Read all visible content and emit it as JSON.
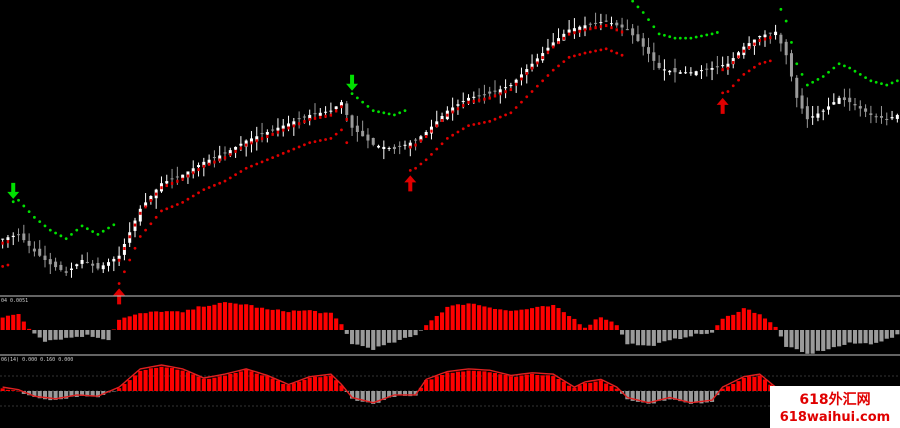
{
  "window": {
    "background": "#000000",
    "separator_color": "#c8c8c8"
  },
  "chart_data": [
    {
      "type": "candlestick",
      "description_colors": {
        "bull": "#ffffff",
        "bear": "#9a9a9a",
        "bull_mark": "#e00000",
        "sell_signal": "#00e000",
        "buy_signal": "#e00000"
      },
      "bars": 170,
      "anchors_close": [
        [
          0,
          0.2
        ],
        [
          3,
          0.22
        ],
        [
          6,
          0.14
        ],
        [
          9,
          0.08
        ],
        [
          12,
          0.04
        ],
        [
          15,
          0.1
        ],
        [
          18,
          0.06
        ],
        [
          22,
          0.12
        ],
        [
          26,
          0.34
        ],
        [
          30,
          0.46
        ],
        [
          34,
          0.5
        ],
        [
          38,
          0.56
        ],
        [
          42,
          0.6
        ],
        [
          46,
          0.66
        ],
        [
          50,
          0.7
        ],
        [
          54,
          0.74
        ],
        [
          58,
          0.78
        ],
        [
          62,
          0.8
        ],
        [
          64,
          0.84
        ],
        [
          66,
          0.72
        ],
        [
          70,
          0.64
        ],
        [
          74,
          0.62
        ],
        [
          78,
          0.66
        ],
        [
          80,
          0.7
        ],
        [
          84,
          0.8
        ],
        [
          88,
          0.86
        ],
        [
          92,
          0.88
        ],
        [
          96,
          0.92
        ],
        [
          100,
          1.02
        ],
        [
          104,
          1.12
        ],
        [
          107,
          1.18
        ],
        [
          110,
          1.2
        ],
        [
          114,
          1.22
        ],
        [
          118,
          1.18
        ],
        [
          121,
          1.1
        ],
        [
          124,
          1.0
        ],
        [
          127,
          0.98
        ],
        [
          130,
          0.98
        ],
        [
          134,
          1.0
        ],
        [
          137,
          1.02
        ],
        [
          140,
          1.1
        ],
        [
          143,
          1.15
        ],
        [
          146,
          1.17
        ],
        [
          148,
          1.06
        ],
        [
          150,
          0.86
        ],
        [
          152,
          0.76
        ],
        [
          155,
          0.8
        ],
        [
          158,
          0.86
        ],
        [
          160,
          0.84
        ],
        [
          164,
          0.78
        ],
        [
          167,
          0.76
        ],
        [
          169,
          0.78
        ]
      ],
      "signals": [
        {
          "type": "sell",
          "bar": 2
        },
        {
          "type": "buy",
          "bar": 22
        },
        {
          "type": "sell",
          "bar": 66
        },
        {
          "type": "buy",
          "bar": 77
        },
        {
          "type": "sell",
          "bar": 118
        },
        {
          "type": "buy",
          "bar": 136
        },
        {
          "type": "sell",
          "bar": 146
        }
      ],
      "value_range": [
        -0.05,
        1.3
      ]
    },
    {
      "type": "histogram",
      "label": "04 0.0051",
      "pos_color": "#ff0000",
      "neg_color": "#9a9a9a",
      "anchors": [
        [
          0,
          0.45
        ],
        [
          3,
          0.6
        ],
        [
          5,
          0.05
        ],
        [
          8,
          -0.4
        ],
        [
          12,
          -0.3
        ],
        [
          16,
          -0.2
        ],
        [
          20,
          -0.35
        ],
        [
          22,
          0.4
        ],
        [
          26,
          0.6
        ],
        [
          30,
          0.7
        ],
        [
          34,
          0.65
        ],
        [
          38,
          0.9
        ],
        [
          42,
          1.0
        ],
        [
          46,
          0.95
        ],
        [
          50,
          0.75
        ],
        [
          54,
          0.7
        ],
        [
          58,
          0.72
        ],
        [
          62,
          0.6
        ],
        [
          64,
          0.2
        ],
        [
          66,
          -0.5
        ],
        [
          70,
          -0.7
        ],
        [
          74,
          -0.45
        ],
        [
          78,
          -0.2
        ],
        [
          80,
          0.2
        ],
        [
          84,
          0.85
        ],
        [
          88,
          1.0
        ],
        [
          92,
          0.85
        ],
        [
          96,
          0.7
        ],
        [
          100,
          0.8
        ],
        [
          104,
          0.9
        ],
        [
          108,
          0.4
        ],
        [
          110,
          0.1
        ],
        [
          113,
          0.5
        ],
        [
          116,
          0.2
        ],
        [
          118,
          -0.5
        ],
        [
          122,
          -0.6
        ],
        [
          126,
          -0.4
        ],
        [
          130,
          -0.2
        ],
        [
          134,
          -0.1
        ],
        [
          136,
          0.4
        ],
        [
          140,
          0.8
        ],
        [
          143,
          0.6
        ],
        [
          146,
          0.1
        ],
        [
          148,
          -0.6
        ],
        [
          152,
          -0.9
        ],
        [
          156,
          -0.7
        ],
        [
          160,
          -0.5
        ],
        [
          164,
          -0.5
        ],
        [
          167,
          -0.35
        ],
        [
          169,
          -0.2
        ]
      ]
    },
    {
      "type": "oscillator",
      "label": "06(14) 0.000 0.160 0.000",
      "pos_color": "#ff0000",
      "neg_color": "#9a9a9a",
      "line_color": "#e02020",
      "anchors": [
        [
          0,
          0.1
        ],
        [
          3,
          0.0
        ],
        [
          6,
          -0.25
        ],
        [
          10,
          -0.35
        ],
        [
          14,
          -0.2
        ],
        [
          18,
          -0.25
        ],
        [
          22,
          0.1
        ],
        [
          26,
          0.8
        ],
        [
          30,
          0.95
        ],
        [
          34,
          0.8
        ],
        [
          38,
          0.45
        ],
        [
          42,
          0.6
        ],
        [
          46,
          0.8
        ],
        [
          50,
          0.55
        ],
        [
          54,
          0.2
        ],
        [
          58,
          0.5
        ],
        [
          62,
          0.6
        ],
        [
          64,
          0.2
        ],
        [
          66,
          -0.3
        ],
        [
          70,
          -0.5
        ],
        [
          74,
          -0.2
        ],
        [
          78,
          -0.2
        ],
        [
          80,
          0.4
        ],
        [
          84,
          0.7
        ],
        [
          88,
          0.8
        ],
        [
          92,
          0.75
        ],
        [
          96,
          0.55
        ],
        [
          100,
          0.65
        ],
        [
          104,
          0.6
        ],
        [
          108,
          0.1
        ],
        [
          110,
          0.3
        ],
        [
          113,
          0.4
        ],
        [
          116,
          0.1
        ],
        [
          118,
          -0.3
        ],
        [
          122,
          -0.5
        ],
        [
          126,
          -0.3
        ],
        [
          130,
          -0.5
        ],
        [
          134,
          -0.4
        ],
        [
          136,
          0.1
        ],
        [
          140,
          0.5
        ],
        [
          143,
          0.6
        ],
        [
          146,
          0.1
        ],
        [
          148,
          -0.55
        ],
        [
          152,
          -0.8
        ],
        [
          156,
          -0.4
        ],
        [
          160,
          -0.3
        ],
        [
          164,
          -0.4
        ],
        [
          167,
          -0.2
        ],
        [
          169,
          0.1
        ]
      ]
    }
  ],
  "watermark": {
    "line1": "618外汇网",
    "line2": "618waihui.com",
    "text_color": "#e00000",
    "bg_color": "#ffffff"
  }
}
